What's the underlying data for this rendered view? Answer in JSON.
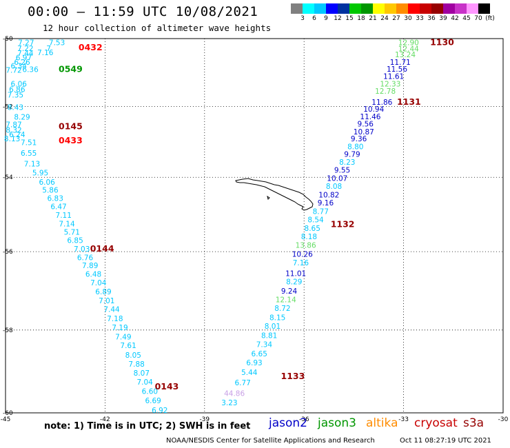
{
  "header": {
    "title": "00:00 – 11:59 UTC 10/08/2021",
    "subtitle": "12 hour collection of altimeter wave heights"
  },
  "colorbar": {
    "swatches": [
      "#808080",
      "#00ffff",
      "#00c8ff",
      "#0000ff",
      "#0032a0",
      "#00c800",
      "#009600",
      "#ffff00",
      "#ffc800",
      "#ff8c00",
      "#ff0000",
      "#c80000",
      "#960000",
      "#a000a0",
      "#c832c8",
      "#ff96ff",
      "#000000"
    ],
    "labels": [
      "3",
      "6",
      "9",
      "12",
      "15",
      "18",
      "21",
      "24",
      "27",
      "30",
      "33",
      "36",
      "39",
      "42",
      "45",
      "70",
      "(ft)"
    ]
  },
  "map": {
    "lon_labels": [
      "-45",
      "-42",
      "-39",
      "-36",
      "-33",
      "-30"
    ],
    "lat_labels": [
      "-50",
      "-52",
      "-54",
      "-56",
      "-58",
      "-60"
    ],
    "colors": {
      "jason2": "#0000c8",
      "jason3": "#009600",
      "altika": "#ff8c00",
      "cryosat": "#c80000",
      "s3a": "#960000"
    },
    "times": [
      {
        "t": "0432",
        "lon": -42.8,
        "lat": -50.35,
        "color": "#ff0000"
      },
      {
        "t": "0549",
        "lon": -43.4,
        "lat": -51.0,
        "color": "#009600"
      },
      {
        "t": "0145",
        "lon": -43.4,
        "lat": -52.65,
        "color": "#960000"
      },
      {
        "t": "0433",
        "lon": -43.4,
        "lat": -53.05,
        "color": "#ff0000"
      },
      {
        "t": "0144",
        "lon": -42.45,
        "lat": -56.0,
        "color": "#960000"
      },
      {
        "t": "0143",
        "lon": -40.5,
        "lat": -59.45,
        "color": "#960000"
      },
      {
        "t": "1130",
        "lon": -32.2,
        "lat": -50.2,
        "color": "#960000"
      },
      {
        "t": "1131",
        "lon": -33.2,
        "lat": -51.95,
        "color": "#960000"
      },
      {
        "t": "1132",
        "lon": -35.2,
        "lat": -55.35,
        "color": "#960000"
      },
      {
        "t": "1133",
        "lon": -36.7,
        "lat": -59.2,
        "color": "#960000"
      }
    ],
    "values": [
      {
        "v": "7.27",
        "lon": -44.38,
        "lat": -50.2,
        "c": "#00c8ff"
      },
      {
        "v": "7.53",
        "lon": -43.45,
        "lat": -50.2,
        "c": "#00c8ff"
      },
      {
        "v": "7.22",
        "lon": -44.4,
        "lat": -50.37,
        "c": "#00c8ff"
      },
      {
        "v": "7",
        "lon": -43.7,
        "lat": -50.37,
        "c": "#00c8ff"
      },
      {
        "v": "7.16",
        "lon": -43.8,
        "lat": -50.5,
        "c": "#00c8ff"
      },
      {
        "v": "7.44",
        "lon": -44.4,
        "lat": -50.52,
        "c": "#00c8ff"
      },
      {
        "v": "6.97",
        "lon": -44.45,
        "lat": -50.65,
        "c": "#00c8ff"
      },
      {
        "v": "6.26",
        "lon": -44.5,
        "lat": -50.78,
        "c": "#00c8ff"
      },
      {
        "v": "6.34",
        "lon": -44.6,
        "lat": -50.9,
        "c": "#00c8ff"
      },
      {
        "v": "7.72",
        "lon": -44.75,
        "lat": -51.02,
        "c": "#00c8ff"
      },
      {
        "v": "6.36",
        "lon": -44.25,
        "lat": -51.0,
        "c": "#00c8ff"
      },
      {
        "v": "6.06",
        "lon": -44.6,
        "lat": -51.42,
        "c": "#00c8ff"
      },
      {
        "v": "6.86",
        "lon": -44.65,
        "lat": -51.58,
        "c": "#00c8ff"
      },
      {
        "v": "7.35",
        "lon": -44.7,
        "lat": -51.74,
        "c": "#00c8ff"
      },
      {
        "v": "8.43",
        "lon": -44.7,
        "lat": -52.1,
        "c": "#00c8ff"
      },
      {
        "v": "8.29",
        "lon": -44.5,
        "lat": -52.38,
        "c": "#00c8ff"
      },
      {
        "v": "7.87",
        "lon": -44.75,
        "lat": -52.6,
        "c": "#00c8ff"
      },
      {
        "v": "8.32",
        "lon": -44.75,
        "lat": -52.75,
        "c": "#00c8ff"
      },
      {
        "v": "6.24",
        "lon": -44.65,
        "lat": -52.88,
        "c": "#00c8ff"
      },
      {
        "v": "8.13",
        "lon": -44.8,
        "lat": -53.0,
        "c": "#00c8ff"
      },
      {
        "v": "7.51",
        "lon": -44.3,
        "lat": -53.1,
        "c": "#00c8ff"
      },
      {
        "v": "6.55",
        "lon": -44.3,
        "lat": -53.4,
        "c": "#00c8ff"
      },
      {
        "v": "7.13",
        "lon": -44.2,
        "lat": -53.7,
        "c": "#00c8ff"
      },
      {
        "v": "5.95",
        "lon": -43.95,
        "lat": -53.95,
        "c": "#00c8ff"
      },
      {
        "v": "6.06",
        "lon": -43.75,
        "lat": -54.2,
        "c": "#00c8ff"
      },
      {
        "v": "5.86",
        "lon": -43.65,
        "lat": -54.42,
        "c": "#00c8ff"
      },
      {
        "v": "6.83",
        "lon": -43.5,
        "lat": -54.65,
        "c": "#00c8ff"
      },
      {
        "v": "6.47",
        "lon": -43.4,
        "lat": -54.87,
        "c": "#00c8ff"
      },
      {
        "v": "7.11",
        "lon": -43.25,
        "lat": -55.1,
        "c": "#00c8ff"
      },
      {
        "v": "7.14",
        "lon": -43.15,
        "lat": -55.33,
        "c": "#00c8ff"
      },
      {
        "v": "5.71",
        "lon": -43.0,
        "lat": -55.55,
        "c": "#00c8ff"
      },
      {
        "v": "6.85",
        "lon": -42.9,
        "lat": -55.77,
        "c": "#00c8ff"
      },
      {
        "v": "7.03",
        "lon": -42.7,
        "lat": -56.0,
        "c": "#00c8ff"
      },
      {
        "v": "6.76",
        "lon": -42.6,
        "lat": -56.22,
        "c": "#00c8ff"
      },
      {
        "v": "7.89",
        "lon": -42.45,
        "lat": -56.43,
        "c": "#00c8ff"
      },
      {
        "v": "6.48",
        "lon": -42.35,
        "lat": -56.65,
        "c": "#00c8ff"
      },
      {
        "v": "7.04",
        "lon": -42.2,
        "lat": -56.87,
        "c": "#00c8ff"
      },
      {
        "v": "6.89",
        "lon": -42.05,
        "lat": -57.1,
        "c": "#00c8ff"
      },
      {
        "v": "7.01",
        "lon": -41.95,
        "lat": -57.33,
        "c": "#00c8ff"
      },
      {
        "v": "7.44",
        "lon": -41.8,
        "lat": -57.55,
        "c": "#00c8ff"
      },
      {
        "v": "7.18",
        "lon": -41.7,
        "lat": -57.78,
        "c": "#00c8ff"
      },
      {
        "v": "7.19",
        "lon": -41.55,
        "lat": -58.0,
        "c": "#00c8ff"
      },
      {
        "v": "7.49",
        "lon": -41.45,
        "lat": -58.23,
        "c": "#00c8ff"
      },
      {
        "v": "7.61",
        "lon": -41.3,
        "lat": -58.45,
        "c": "#00c8ff"
      },
      {
        "v": "8.05",
        "lon": -41.15,
        "lat": -58.68,
        "c": "#00c8ff"
      },
      {
        "v": "7.88",
        "lon": -41.05,
        "lat": -58.9,
        "c": "#00c8ff"
      },
      {
        "v": "8.07",
        "lon": -40.9,
        "lat": -59.12,
        "c": "#00c8ff"
      },
      {
        "v": "7.04",
        "lon": -40.8,
        "lat": -59.33,
        "c": "#00c8ff"
      },
      {
        "v": "6.60",
        "lon": -40.65,
        "lat": -59.55,
        "c": "#00c8ff"
      },
      {
        "v": "6.69",
        "lon": -40.55,
        "lat": -59.77,
        "c": "#00c8ff"
      },
      {
        "v": "6.92",
        "lon": -40.35,
        "lat": -60.0,
        "c": "#00c8ff"
      },
      {
        "v": "12.90",
        "lon": -32.85,
        "lat": -50.2,
        "c": "#64dc64"
      },
      {
        "v": "12.44",
        "lon": -32.85,
        "lat": -50.38,
        "c": "#64dc64"
      },
      {
        "v": "13.24",
        "lon": -32.95,
        "lat": -50.56,
        "c": "#64dc64"
      },
      {
        "v": "11.71",
        "lon": -33.1,
        "lat": -50.78,
        "c": "#0000c8"
      },
      {
        "v": "11.56",
        "lon": -33.2,
        "lat": -50.99,
        "c": "#0000c8"
      },
      {
        "v": "11.61",
        "lon": -33.3,
        "lat": -51.2,
        "c": "#0000c8"
      },
      {
        "v": "12.33",
        "lon": -33.4,
        "lat": -51.42,
        "c": "#64dc64"
      },
      {
        "v": "12.78",
        "lon": -33.55,
        "lat": -51.63,
        "c": "#64dc64"
      },
      {
        "v": "11.86",
        "lon": -33.65,
        "lat": -51.95,
        "c": "#0000c8"
      },
      {
        "v": "10.94",
        "lon": -33.9,
        "lat": -52.15,
        "c": "#0000c8"
      },
      {
        "v": "11.46",
        "lon": -34.0,
        "lat": -52.37,
        "c": "#0000c8"
      },
      {
        "v": "9.56",
        "lon": -34.15,
        "lat": -52.58,
        "c": "#0000c8"
      },
      {
        "v": "10.87",
        "lon": -34.2,
        "lat": -52.8,
        "c": "#0000c8"
      },
      {
        "v": "9.36",
        "lon": -34.35,
        "lat": -53.0,
        "c": "#0000c8"
      },
      {
        "v": "8.80",
        "lon": -34.45,
        "lat": -53.22,
        "c": "#00c8ff"
      },
      {
        "v": "9.79",
        "lon": -34.55,
        "lat": -53.43,
        "c": "#0000c8"
      },
      {
        "v": "8.23",
        "lon": -34.7,
        "lat": -53.65,
        "c": "#00c8ff"
      },
      {
        "v": "9.55",
        "lon": -34.85,
        "lat": -53.87,
        "c": "#0000c8"
      },
      {
        "v": "10.07",
        "lon": -35.0,
        "lat": -54.1,
        "c": "#0000c8"
      },
      {
        "v": "8.08",
        "lon": -35.1,
        "lat": -54.32,
        "c": "#00c8ff"
      },
      {
        "v": "10.82",
        "lon": -35.25,
        "lat": -54.55,
        "c": "#0000c8"
      },
      {
        "v": "9.16",
        "lon": -35.35,
        "lat": -54.77,
        "c": "#0000c8"
      },
      {
        "v": "8.77",
        "lon": -35.5,
        "lat": -55.0,
        "c": "#00c8ff"
      },
      {
        "v": "8.54",
        "lon": -35.65,
        "lat": -55.22,
        "c": "#00c8ff"
      },
      {
        "v": "8.65",
        "lon": -35.75,
        "lat": -55.45,
        "c": "#00c8ff"
      },
      {
        "v": "8.18",
        "lon": -35.85,
        "lat": -55.67,
        "c": "#00c8ff"
      },
      {
        "v": "13.86",
        "lon": -35.95,
        "lat": -55.9,
        "c": "#64dc64"
      },
      {
        "v": "10.26",
        "lon": -36.05,
        "lat": -56.13,
        "c": "#0000c8"
      },
      {
        "v": "7.16",
        "lon": -36.1,
        "lat": -56.36,
        "c": "#00c8ff"
      },
      {
        "v": "11.01",
        "lon": -36.25,
        "lat": -56.63,
        "c": "#0000c8"
      },
      {
        "v": "8.29",
        "lon": -36.3,
        "lat": -56.85,
        "c": "#00c8ff"
      },
      {
        "v": "9.24",
        "lon": -36.45,
        "lat": -57.08,
        "c": "#0000c8"
      },
      {
        "v": "12.14",
        "lon": -36.55,
        "lat": -57.3,
        "c": "#64dc64"
      },
      {
        "v": "8.72",
        "lon": -36.65,
        "lat": -57.52,
        "c": "#00c8ff"
      },
      {
        "v": "8.15",
        "lon": -36.8,
        "lat": -57.75,
        "c": "#00c8ff"
      },
      {
        "v": "8.01",
        "lon": -36.95,
        "lat": -57.97,
        "c": "#00c8ff"
      },
      {
        "v": "8.81",
        "lon": -37.05,
        "lat": -58.2,
        "c": "#00c8ff"
      },
      {
        "v": "7.34",
        "lon": -37.2,
        "lat": -58.42,
        "c": "#00c8ff"
      },
      {
        "v": "6.65",
        "lon": -37.35,
        "lat": -58.65,
        "c": "#00c8ff"
      },
      {
        "v": "6.93",
        "lon": -37.5,
        "lat": -58.87,
        "c": "#00c8ff"
      },
      {
        "v": "5.44",
        "lon": -37.65,
        "lat": -59.1,
        "c": "#00c8ff"
      },
      {
        "v": "6.77",
        "lon": -37.85,
        "lat": -59.35,
        "c": "#00c8ff"
      },
      {
        "v": "44.86",
        "lon": -38.1,
        "lat": -59.6,
        "c": "#c8a0e6"
      },
      {
        "v": "3.23",
        "lon": -38.25,
        "lat": -59.82,
        "c": "#00c8ff"
      }
    ]
  },
  "legend": {
    "note": "note:  1) Time is in UTC;  2) SWH is in feet",
    "missions": [
      {
        "name": "jason2",
        "color": "#0000c8"
      },
      {
        "name": "jason3",
        "color": "#009600"
      },
      {
        "name": "altika",
        "color": "#ff8c00"
      },
      {
        "name": "cryosat",
        "color": "#c80000"
      },
      {
        "name": "s3a",
        "color": "#960000"
      }
    ]
  },
  "footer": {
    "credit": "NOAA/NESDIS Center for Satellite Applications and Research",
    "timestamp": "Oct 11 08:27:19 UTC 2021"
  }
}
